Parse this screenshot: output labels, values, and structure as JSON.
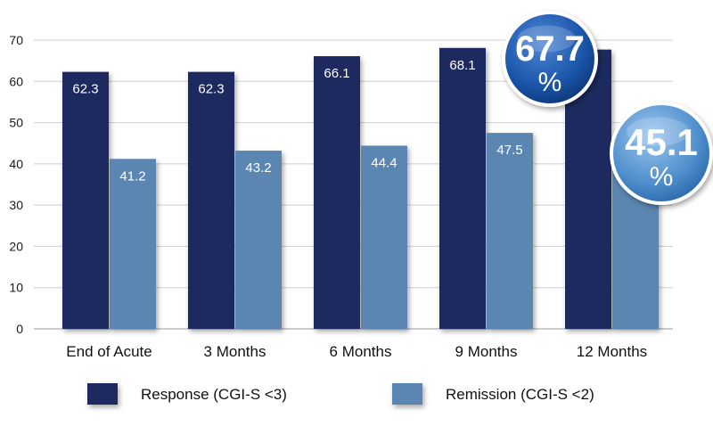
{
  "chart_data": {
    "type": "bar",
    "categories": [
      "End of Acute",
      "3 Months",
      "6 Months",
      "9 Months",
      "12 Months"
    ],
    "series": [
      {
        "name": "Response (CGI-S <3)",
        "values": [
          62.3,
          62.3,
          66.1,
          68.1,
          67.7
        ],
        "color": "#1e2a5e"
      },
      {
        "name": "Remission (CGI-S <2)",
        "values": [
          41.2,
          43.2,
          44.4,
          47.5,
          45.1
        ],
        "color": "#5a86b1"
      }
    ],
    "data_labels": [
      [
        "62.3",
        "62.3",
        "66.1",
        "68.1",
        ""
      ],
      [
        "41.2",
        "43.2",
        "44.4",
        "47.5",
        ""
      ]
    ],
    "ylim": [
      0,
      70
    ],
    "yticks": [
      0,
      10,
      20,
      30,
      40,
      50,
      60,
      70
    ],
    "grid": true,
    "legend_position": "bottom",
    "callouts": [
      {
        "value": "67.7",
        "unit": "%",
        "series": 0,
        "category": 4,
        "color": "#1a55a8"
      },
      {
        "value": "45.1",
        "unit": "%",
        "series": 1,
        "category": 4,
        "color": "#4f8fcc"
      }
    ]
  }
}
